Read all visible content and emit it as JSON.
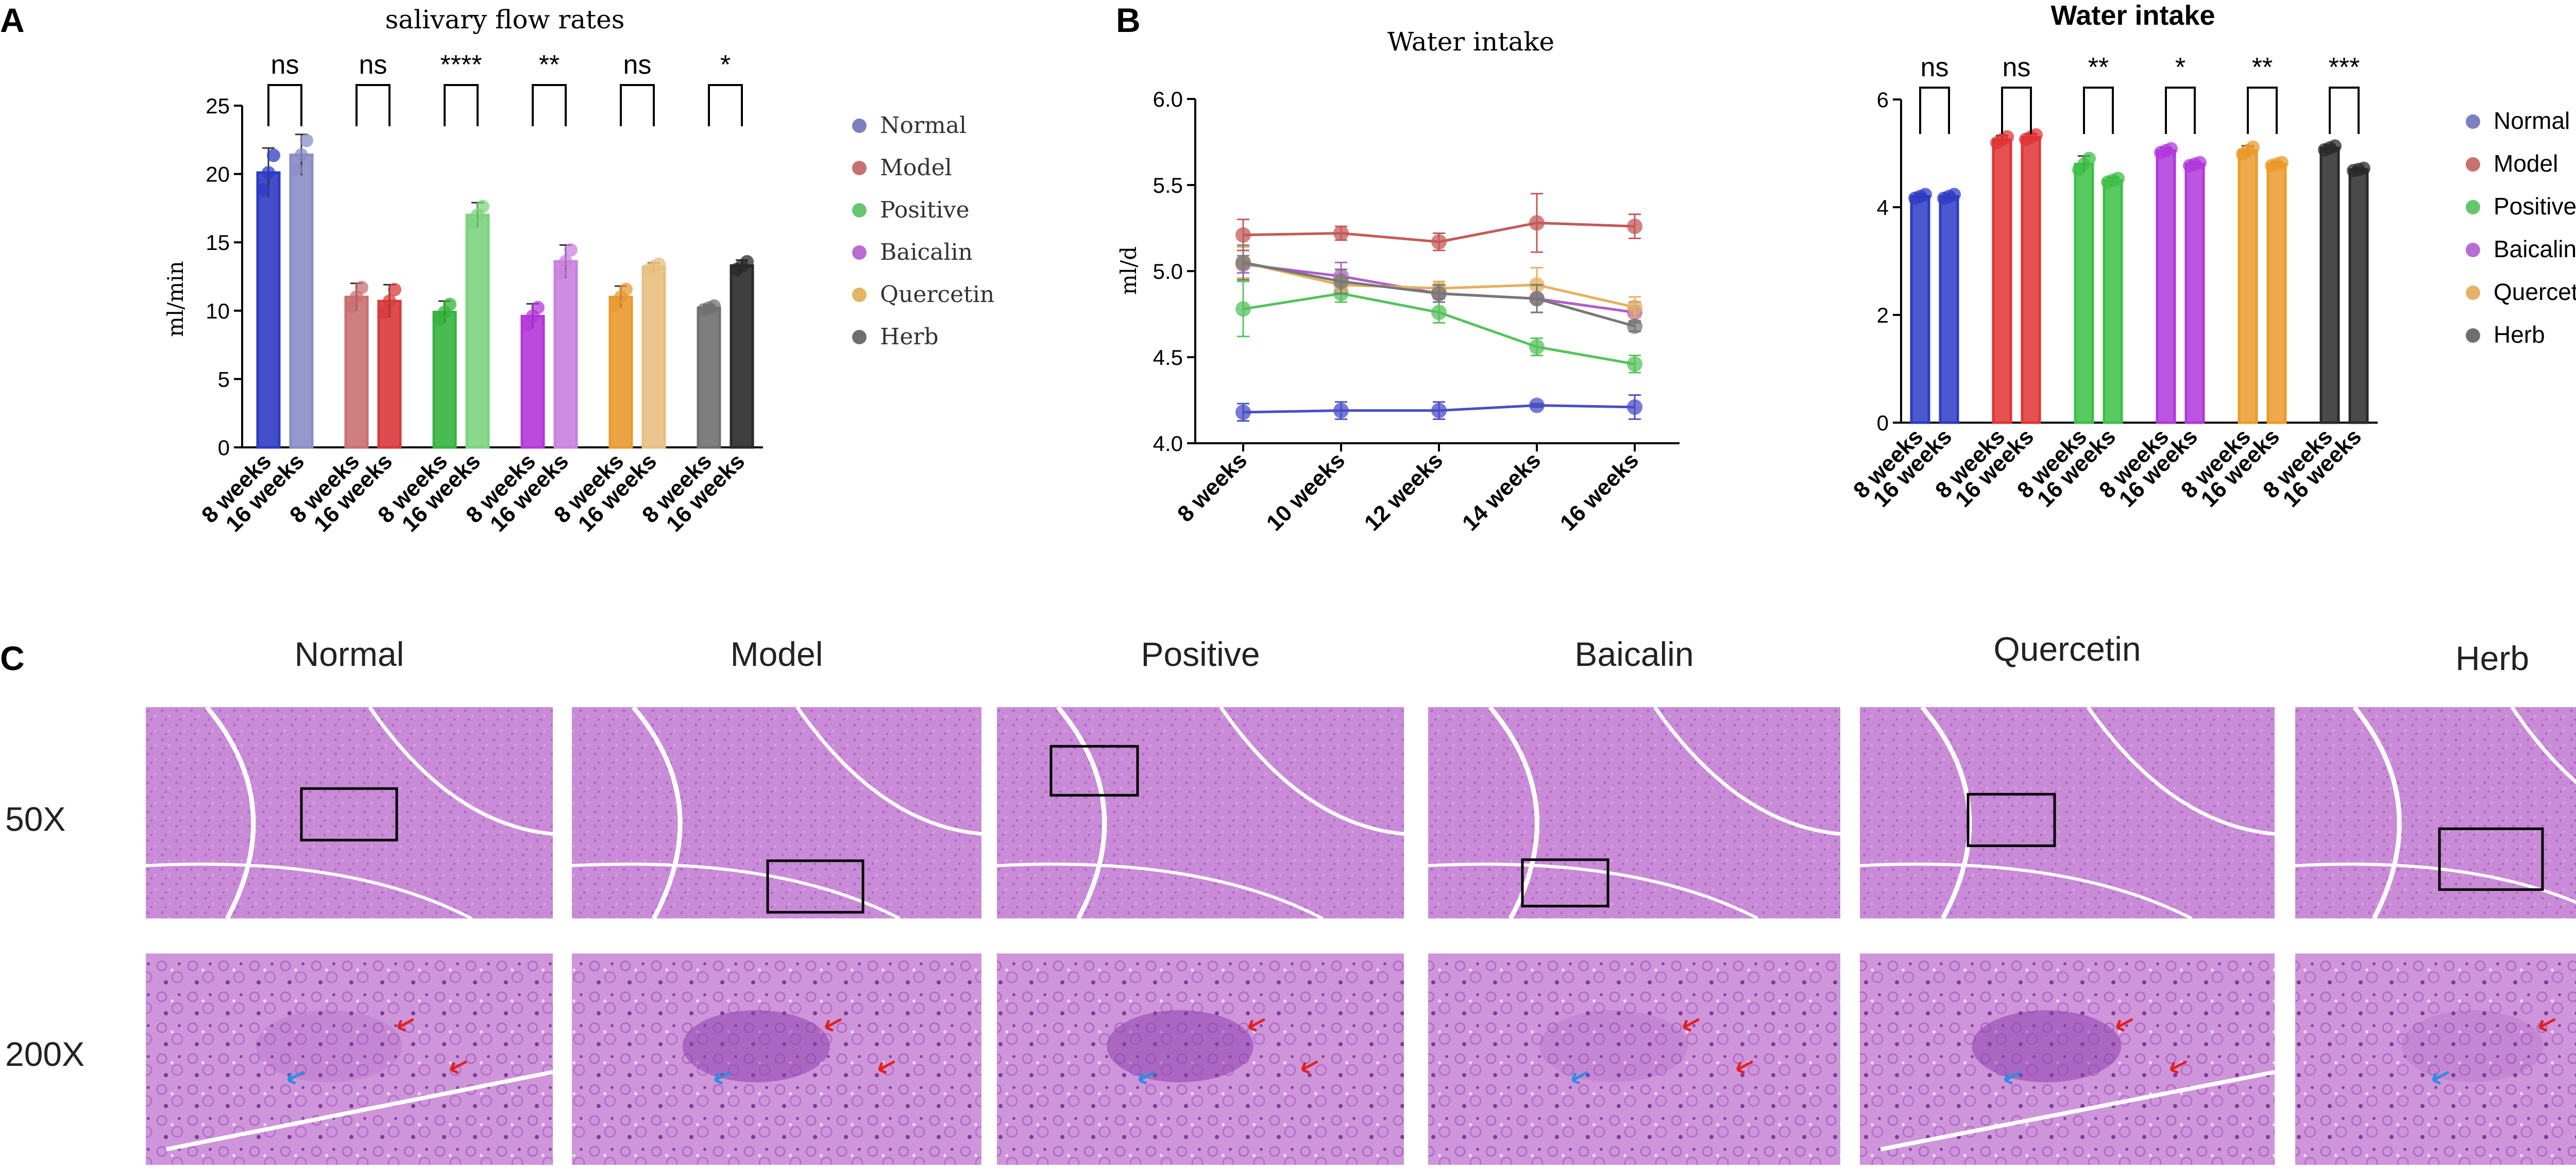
{
  "panels": {
    "a": "A",
    "b": "B",
    "c": "C"
  },
  "colors": {
    "normal": "#7c7fc0",
    "model": "#c97070",
    "positive": "#66c66e",
    "baicalin": "#b96cd2",
    "quercetin": "#e3b467",
    "herb": "#6e6e6e",
    "tissue": "#c88ad6",
    "tissue_dark": "#9a4cb3"
  },
  "chart_data": [
    {
      "type": "bar",
      "title": "salivary flow rates",
      "xlabel": "",
      "ylabel": "ml/min",
      "ylim": [
        0,
        25
      ],
      "yticks": [
        "0",
        "5",
        "10",
        "15",
        "20",
        "25"
      ],
      "categories": [
        "8 weeks",
        "16 weeks"
      ],
      "series": [
        {
          "name": "Normal",
          "values": [
            20.1,
            21.4
          ],
          "errors": [
            1.8,
            1.5
          ],
          "colors": [
            "#2d3bc4",
            "#8a8dc6"
          ]
        },
        {
          "name": "Model",
          "values": [
            11.0,
            10.7
          ],
          "errors": [
            1.0,
            1.2
          ],
          "colors": [
            "#c97070",
            "#d93a3a"
          ]
        },
        {
          "name": "Positive",
          "values": [
            9.9,
            17.0
          ],
          "errors": [
            0.8,
            0.9
          ],
          "colors": [
            "#36b33f",
            "#7cd47f"
          ]
        },
        {
          "name": "Baicalin",
          "values": [
            9.6,
            13.6
          ],
          "errors": [
            0.9,
            1.2
          ],
          "colors": [
            "#b437d9",
            "#c981de"
          ]
        },
        {
          "name": "Quercetin",
          "values": [
            11.0,
            13.2
          ],
          "errors": [
            0.8,
            0.3
          ],
          "colors": [
            "#e89a30",
            "#e8bf82"
          ]
        },
        {
          "name": "Herb",
          "values": [
            10.2,
            13.3
          ],
          "errors": [
            0.2,
            0.4
          ],
          "colors": [
            "#707070",
            "#2a2a2a"
          ]
        }
      ],
      "significance": [
        "ns",
        "ns",
        "****",
        "**",
        "ns",
        "*"
      ],
      "legend": [
        "Normal",
        "Model",
        "Positive",
        "Baicalin",
        "Quercetin",
        "Herb"
      ]
    },
    {
      "type": "line",
      "title": "Water intake",
      "xlabel": "",
      "ylabel": "ml/d",
      "ylim": [
        4.0,
        6.0
      ],
      "yticks": [
        "4.0",
        "4.5",
        "5.0",
        "5.5",
        "6.0"
      ],
      "x": [
        "8 weeks",
        "10 weeks",
        "12 weeks",
        "14 weeks",
        "16 weeks"
      ],
      "series": [
        {
          "name": "Normal",
          "values": [
            4.18,
            4.19,
            4.19,
            4.22,
            4.21
          ],
          "errors": [
            0.05,
            0.05,
            0.05,
            0.01,
            0.07
          ],
          "color": "#4a4fc4"
        },
        {
          "name": "Model",
          "values": [
            5.21,
            5.22,
            5.17,
            5.28,
            5.26
          ],
          "errors": [
            0.09,
            0.04,
            0.05,
            0.17,
            0.07
          ],
          "color": "#c45a5a"
        },
        {
          "name": "Positive",
          "values": [
            4.78,
            4.87,
            4.76,
            4.56,
            4.46
          ],
          "errors": [
            0.16,
            0.05,
            0.06,
            0.05,
            0.05
          ],
          "color": "#55c25c"
        },
        {
          "name": "Baicalin",
          "values": [
            5.04,
            4.97,
            4.87,
            4.84,
            4.76
          ],
          "errors": [
            0.05,
            0.08,
            0.03,
            0.08,
            0.06
          ],
          "color": "#b05ec9"
        },
        {
          "name": "Quercetin",
          "values": [
            5.05,
            4.92,
            4.9,
            4.92,
            4.79
          ],
          "errors": [
            0.09,
            0.05,
            0.04,
            0.1,
            0.06
          ],
          "color": "#e4b05e"
        },
        {
          "name": "Herb",
          "values": [
            5.05,
            4.94,
            4.87,
            4.84,
            4.68
          ],
          "errors": [
            0.1,
            0.07,
            0.05,
            0.08,
            0.03
          ],
          "color": "#777777"
        }
      ]
    },
    {
      "type": "bar",
      "title": "Water intake",
      "xlabel": "",
      "ylabel": "",
      "ylim": [
        0,
        6
      ],
      "yticks": [
        "0",
        "2",
        "4",
        "6"
      ],
      "categories": [
        "8 weeks",
        "16 weeks"
      ],
      "series": [
        {
          "name": "Normal",
          "values": [
            4.2,
            4.2
          ],
          "errors": [
            0.05,
            0.05
          ],
          "colors": [
            "#2d3bc4",
            "#2d3bc4"
          ]
        },
        {
          "name": "Model",
          "values": [
            5.25,
            5.3
          ],
          "errors": [
            0.08,
            0.06
          ],
          "colors": [
            "#e23434",
            "#e23434"
          ]
        },
        {
          "name": "Positive",
          "values": [
            4.8,
            4.5
          ],
          "errors": [
            0.15,
            0.05
          ],
          "colors": [
            "#3cc046",
            "#3cc046"
          ]
        },
        {
          "name": "Baicalin",
          "values": [
            5.05,
            4.8
          ],
          "errors": [
            0.05,
            0.04
          ],
          "colors": [
            "#b038dc",
            "#b038dc"
          ]
        },
        {
          "name": "Quercetin",
          "values": [
            5.05,
            4.8
          ],
          "errors": [
            0.09,
            0.04
          ],
          "colors": [
            "#eb9a2a",
            "#eb9a2a"
          ]
        },
        {
          "name": "Herb",
          "values": [
            5.1,
            4.7
          ],
          "errors": [
            0.05,
            0.03
          ],
          "colors": [
            "#2a2a2a",
            "#2a2a2a"
          ]
        }
      ],
      "significance": [
        "ns",
        "ns",
        "**",
        "*",
        "**",
        "***"
      ],
      "legend": [
        "Normal",
        "Model",
        "Positive",
        "Baicalin",
        "Quercetin",
        "Herb"
      ]
    }
  ],
  "histology": {
    "columns": [
      "Normal",
      "Model",
      "Positive",
      "Baicalin",
      "Quercetin",
      "Herb"
    ],
    "rows": [
      "50X",
      "200X"
    ]
  }
}
